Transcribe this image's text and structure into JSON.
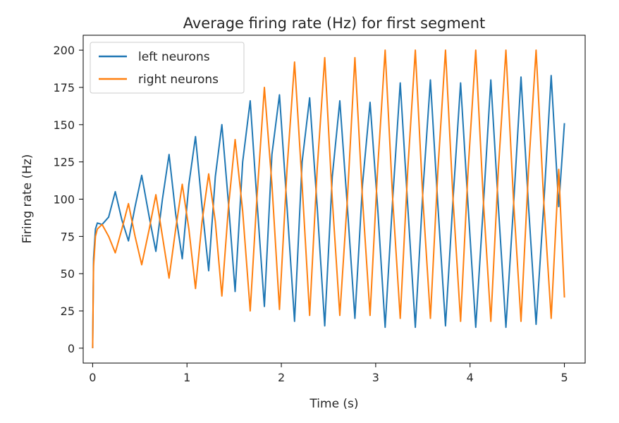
{
  "chart_data": {
    "type": "line",
    "title": "Average firing rate (Hz) for first segment",
    "xlabel": "Time (s)",
    "ylabel": "Firing rate (Hz)",
    "xlim": [
      -0.1,
      5.22
    ],
    "ylim": [
      -10,
      210
    ],
    "x_ticks": [
      0,
      1,
      2,
      3,
      4,
      5
    ],
    "x_tick_labels": [
      "0",
      "1",
      "2",
      "3",
      "4",
      "5"
    ],
    "y_ticks": [
      0,
      25,
      50,
      75,
      100,
      125,
      150,
      175,
      200
    ],
    "y_tick_labels": [
      "0",
      "25",
      "50",
      "75",
      "100",
      "125",
      "150",
      "175",
      "200"
    ],
    "grid": false,
    "legend_position": "upper-left",
    "series": [
      {
        "name": "left neurons",
        "color": "#1f77b4",
        "x": [
          0,
          0.01,
          0.03,
          0.05,
          0.1,
          0.17,
          0.24,
          0.31,
          0.38,
          0.45,
          0.52,
          0.6,
          0.67,
          0.74,
          0.81,
          0.88,
          0.95,
          1.02,
          1.09,
          1.16,
          1.23,
          1.3,
          1.37,
          1.44,
          1.51,
          1.59,
          1.67,
          1.74,
          1.82,
          1.9,
          1.98,
          2.06,
          2.14,
          2.22,
          2.3,
          2.38,
          2.46,
          2.54,
          2.62,
          2.7,
          2.78,
          2.86,
          2.94,
          3.02,
          3.1,
          3.18,
          3.26,
          3.34,
          3.42,
          3.5,
          3.58,
          3.66,
          3.74,
          3.82,
          3.9,
          3.98,
          4.06,
          4.14,
          4.22,
          4.3,
          4.38,
          4.46,
          4.54,
          4.62,
          4.7,
          4.78,
          4.86,
          4.94,
          5.0
        ],
        "y": [
          0,
          60,
          80,
          84,
          83,
          88,
          105,
          86,
          72,
          95,
          116,
          88,
          65,
          100,
          130,
          90,
          60,
          110,
          142,
          95,
          52,
          115,
          150,
          97,
          38,
          125,
          166,
          100,
          28,
          130,
          170,
          95,
          18,
          125,
          168,
          95,
          15,
          115,
          166,
          95,
          20,
          110,
          165,
          95,
          14,
          100,
          178,
          95,
          14,
          105,
          180,
          95,
          15,
          100,
          178,
          95,
          14,
          95,
          180,
          95,
          14,
          95,
          182,
          95,
          16,
          95,
          183,
          95,
          151
        ]
      },
      {
        "name": "right neurons",
        "color": "#ff7f0e",
        "x": [
          0,
          0.01,
          0.03,
          0.05,
          0.1,
          0.17,
          0.24,
          0.31,
          0.38,
          0.45,
          0.52,
          0.6,
          0.67,
          0.74,
          0.81,
          0.88,
          0.95,
          1.02,
          1.09,
          1.16,
          1.23,
          1.3,
          1.37,
          1.44,
          1.51,
          1.59,
          1.67,
          1.74,
          1.82,
          1.9,
          1.98,
          2.06,
          2.14,
          2.22,
          2.3,
          2.38,
          2.46,
          2.54,
          2.62,
          2.7,
          2.78,
          2.86,
          2.94,
          3.02,
          3.1,
          3.18,
          3.26,
          3.34,
          3.42,
          3.5,
          3.58,
          3.66,
          3.74,
          3.82,
          3.9,
          3.98,
          4.06,
          4.14,
          4.22,
          4.3,
          4.38,
          4.46,
          4.54,
          4.62,
          4.7,
          4.78,
          4.86,
          4.94,
          5.0
        ],
        "y": [
          0,
          55,
          75,
          80,
          83,
          75,
          64,
          80,
          97,
          75,
          56,
          80,
          103,
          75,
          47,
          80,
          110,
          80,
          40,
          85,
          117,
          85,
          35,
          95,
          140,
          92,
          25,
          100,
          175,
          110,
          26,
          120,
          192,
          110,
          22,
          120,
          195,
          100,
          22,
          100,
          195,
          100,
          22,
          120,
          200,
          100,
          20,
          120,
          200,
          100,
          20,
          120,
          200,
          100,
          18,
          120,
          200,
          100,
          18,
          120,
          200,
          100,
          18,
          120,
          200,
          100,
          20,
          120,
          34
        ]
      }
    ]
  }
}
